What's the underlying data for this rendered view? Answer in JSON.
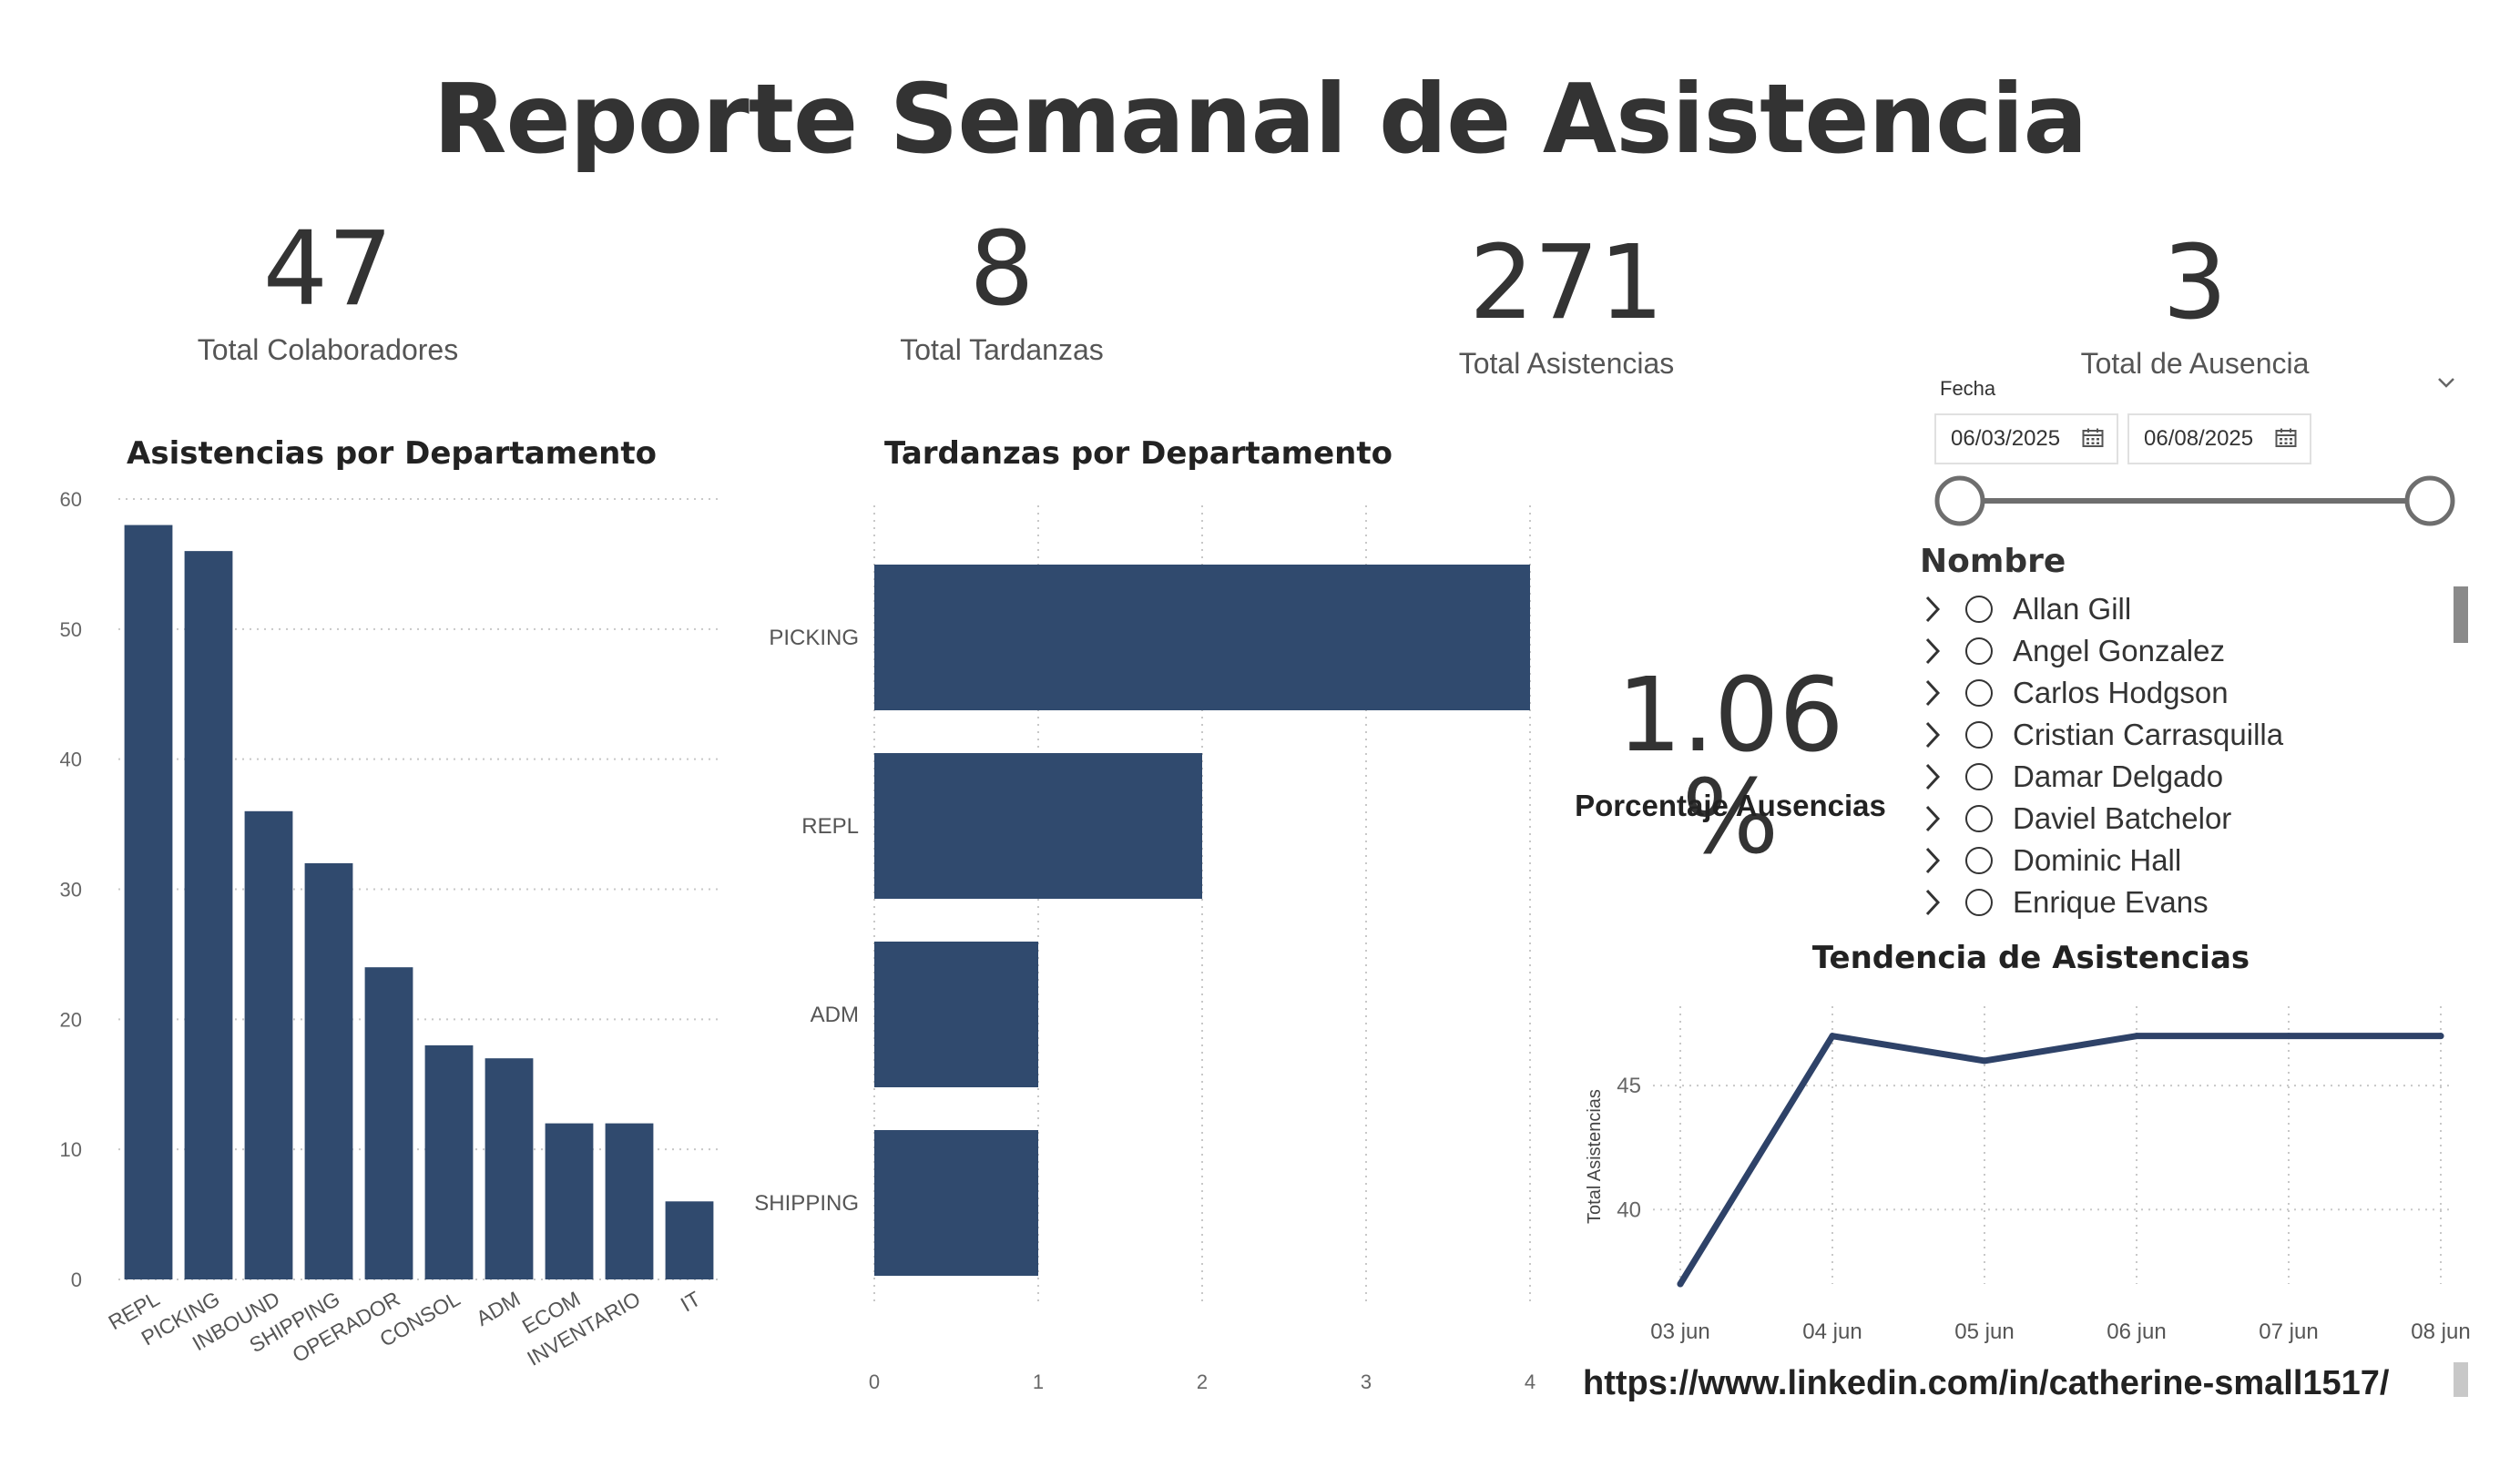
{
  "title": "Reporte Semanal de Asistencia",
  "kpis": {
    "total_colaboradores": {
      "value": "47",
      "label": "Total Colaboradores"
    },
    "total_tardanzas": {
      "value": "8",
      "label": "Total Tardanzas"
    },
    "total_asistencias": {
      "value": "271",
      "label": "Total Asistencias"
    },
    "total_ausencia": {
      "value": "3",
      "label": "Total de Ausencia"
    }
  },
  "porcentaje": {
    "value": "1.06 %",
    "label": "Porcentaje Ausencias"
  },
  "slicer": {
    "label": "Fecha",
    "start": "06/03/2025",
    "end": "06/08/2025",
    "range_fraction": [
      0.0,
      1.0
    ]
  },
  "nombre": {
    "title": "Nombre",
    "items": [
      "Allan Gill",
      "Angel Gonzalez",
      "Carlos Hodgson",
      "Cristian Carrasquilla",
      "Damar Delgado",
      "Daviel Batchelor",
      "Dominic Hall",
      "Enrique Evans"
    ]
  },
  "link": "https://www.linkedin.com/in/catherine-small1517/",
  "colors": {
    "bar": "#304a6e",
    "line": "#2e4268",
    "grid": "#c8c8c8",
    "text": "#333333"
  },
  "icons": [
    "calendar-icon",
    "chevron-down-icon",
    "chevron-right-icon",
    "radio-icon"
  ],
  "chart_data": [
    {
      "type": "bar",
      "title": "Asistencias por Departamento",
      "categories": [
        "REPL",
        "PICKING",
        "INBOUND",
        "SHIPPING",
        "OPERADOR",
        "CONSOL",
        "ADM",
        "ECOM",
        "INVENTARIO",
        "IT"
      ],
      "values": [
        58,
        56,
        36,
        32,
        24,
        18,
        17,
        12,
        12,
        6
      ],
      "ylim": [
        0,
        60
      ],
      "yticks": [
        0,
        10,
        20,
        30,
        40,
        50,
        60
      ],
      "xlabel": "",
      "ylabel": "",
      "grid": true
    },
    {
      "type": "bar",
      "orientation": "horizontal",
      "title": "Tardanzas por Departamento",
      "categories": [
        "PICKING",
        "REPL",
        "ADM",
        "SHIPPING"
      ],
      "values": [
        4,
        2,
        1,
        1
      ],
      "xlim": [
        0,
        4
      ],
      "xticks": [
        0,
        1,
        2,
        3,
        4
      ],
      "grid": true
    },
    {
      "type": "line",
      "title": "Tendencia de Asistencias",
      "x": [
        "03 jun",
        "04 jun",
        "05 jun",
        "06 jun",
        "07 jun",
        "08 jun"
      ],
      "values": [
        37,
        47,
        46,
        47,
        47,
        47
      ],
      "ylabel": "Total Asistencias",
      "ylim": [
        37,
        48.2
      ],
      "yticks": [
        40,
        45
      ],
      "grid": true
    }
  ]
}
